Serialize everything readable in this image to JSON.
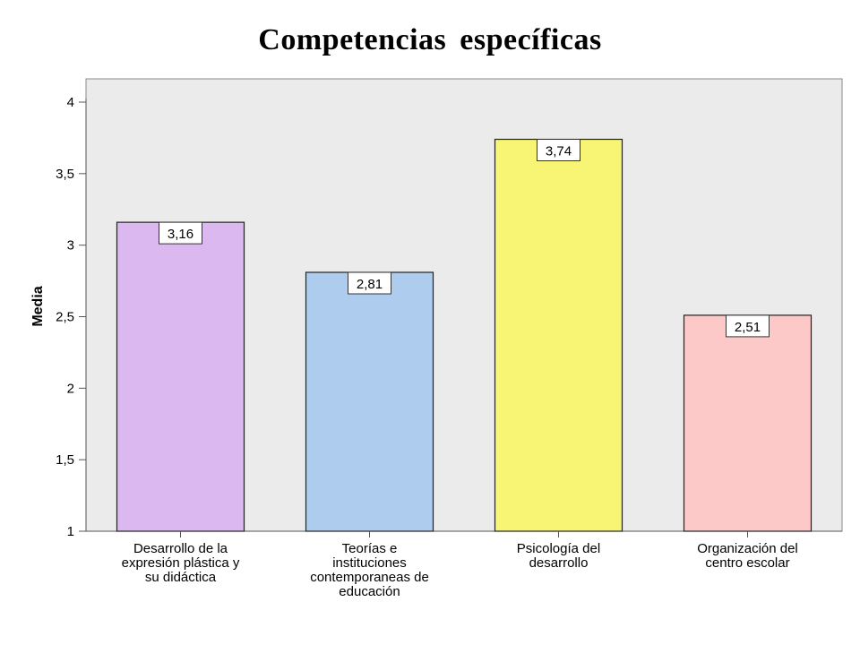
{
  "chart_data": {
    "type": "bar",
    "title": "Competencias específicas",
    "xlabel": "",
    "ylabel": "Media",
    "ylim": [
      1,
      4
    ],
    "yticks": [
      "1",
      "1,5",
      "2",
      "2,5",
      "3",
      "3,5",
      "4"
    ],
    "grid": false,
    "legend": "none",
    "categories": [
      [
        "Desarrollo de la",
        "expresión plástica y",
        "su didáctica"
      ],
      [
        "Teorías e",
        "instituciones",
        "contemporaneas de",
        "educación"
      ],
      [
        "Psicología del",
        "desarrollo"
      ],
      [
        "Organización del",
        "centro escolar"
      ]
    ],
    "values": [
      3.16,
      2.81,
      3.74,
      2.51
    ],
    "value_labels": [
      "3,16",
      "2,81",
      "3,74",
      "2,51"
    ],
    "colors": [
      "#dcb8f0",
      "#aecdee",
      "#f8f474",
      "#fcc8c8"
    ],
    "plot_background": "#ebebeb"
  }
}
